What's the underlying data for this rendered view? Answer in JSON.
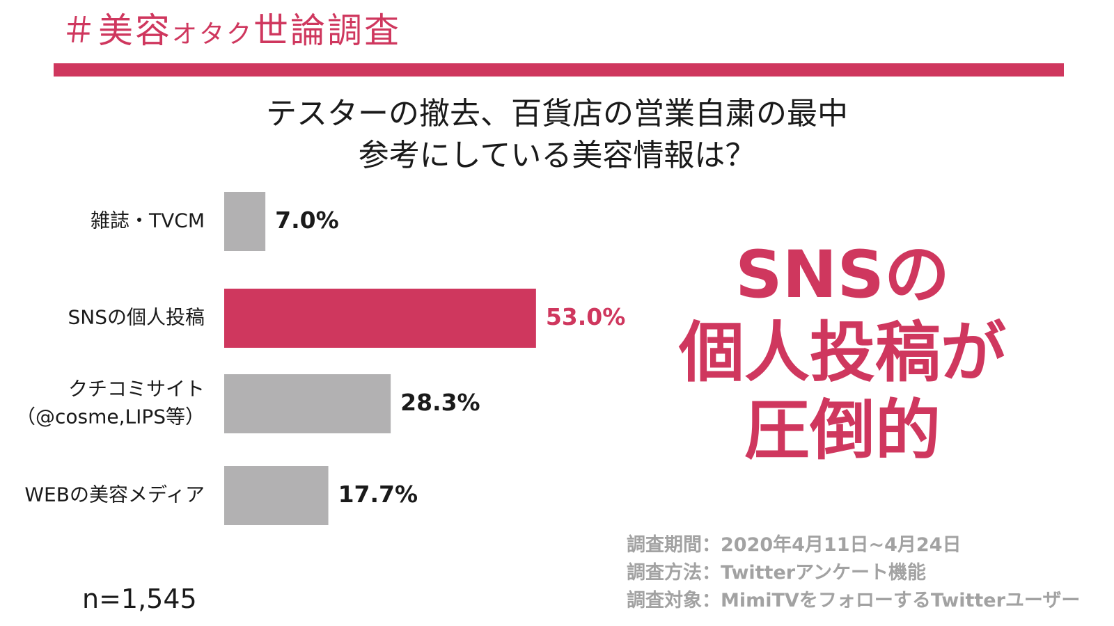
{
  "colors": {
    "accent": "#cf375e",
    "bar_default": "#b2b1b2",
    "text": "#1a1a1a",
    "note": "#a2a2a2"
  },
  "header": {
    "tag_main": "＃美容",
    "tag_small": "オタク",
    "tag_end": "世論調査"
  },
  "chart_data": {
    "type": "bar",
    "orientation": "horizontal",
    "title": [
      "テスターの撤去、百貨店の営業自粛の最中",
      "参考にしている美容情報は？"
    ],
    "categories": [
      [
        "雑誌・TVCM"
      ],
      [
        "SNSの個人投稿"
      ],
      [
        "クチコミサイト",
        "（@cosme,LIPS等）"
      ],
      [
        "WEBの美容メディア"
      ]
    ],
    "values": [
      7.0,
      53.0,
      28.3,
      17.7
    ],
    "value_labels": [
      "7.0%",
      "53.0%",
      "28.3%",
      "17.7%"
    ],
    "highlight_index": 1,
    "unit": "%",
    "xlim": [
      0,
      100
    ],
    "grid": false,
    "legend": "none"
  },
  "sample": {
    "label": "n=1,545"
  },
  "highlight": {
    "lines": [
      "SNSの",
      "個人投稿が",
      "圧倒的"
    ]
  },
  "notes": {
    "lines": [
      "調査期間：2020年4月11日~4月24日",
      "調査方法：Twitterアンケート機能",
      "調査対象：MimiTVをフォローするTwitterユーザー"
    ]
  }
}
